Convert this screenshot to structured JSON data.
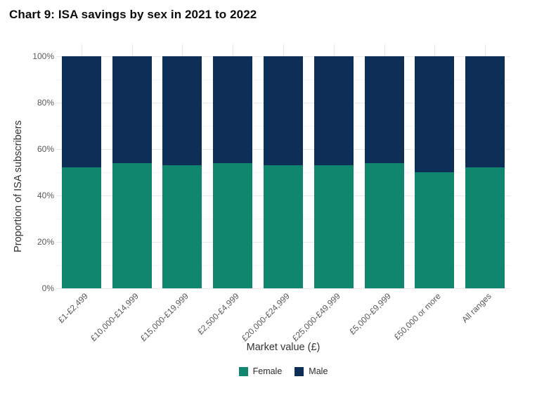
{
  "title": "Chart 9: ISA savings by sex in 2021 to 2022",
  "chart_data": {
    "type": "bar",
    "stacked": true,
    "orientation": "vertical",
    "title": "Chart 9: ISA savings by sex in 2021 to 2022",
    "categories": [
      "£1-£2,499",
      "£10,000-£14,999",
      "£15,000-£19,999",
      "£2,500-£4,999",
      "£20,000-£24,999",
      "£25,000-£49,999",
      "£5,000-£9,999",
      "£50,000 or more",
      "All ranges"
    ],
    "series": [
      {
        "name": "Female",
        "color": "#10866f",
        "values": [
          52,
          54,
          53,
          54,
          53,
          53,
          54,
          50,
          52
        ]
      },
      {
        "name": "Male",
        "color": "#0d2e56",
        "values": [
          48,
          46,
          47,
          46,
          47,
          47,
          46,
          50,
          48
        ]
      }
    ],
    "value_unit": "%",
    "xlabel": "Market value (£)",
    "ylabel": "Proportion of ISA subscribers",
    "ylim": [
      0,
      100
    ],
    "yticks": [
      {
        "value": 0,
        "label": "0%"
      },
      {
        "value": 20,
        "label": "20%"
      },
      {
        "value": 40,
        "label": "40%"
      },
      {
        "value": 60,
        "label": "60%"
      },
      {
        "value": 80,
        "label": "80%"
      },
      {
        "value": 100,
        "label": "100%"
      }
    ],
    "grid": true,
    "legend_position": "bottom"
  },
  "colors": {
    "female": "#10866f",
    "male": "#0d2e56",
    "title_text": "#0b0c0c",
    "axis_title_text": "#333333",
    "tick_text": "#595959",
    "gridline_major": "#e8e8e8",
    "gridline_minor": "#f4f4f4"
  }
}
